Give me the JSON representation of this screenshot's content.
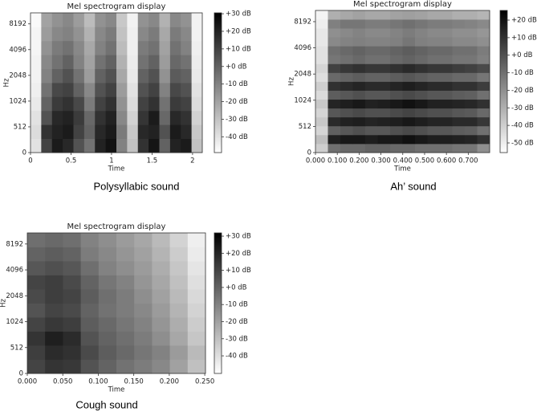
{
  "chart_data": [
    {
      "type": "heatmap",
      "title": "Mel spectrogram display",
      "caption": "Polysyllabic sound",
      "xlabel": "Time",
      "ylabel": "Hz",
      "yscale": "symlog",
      "colormap": "gray_r",
      "xlim": [
        0,
        2.12
      ],
      "xticks": [
        0,
        0.5,
        1,
        1.5,
        2
      ],
      "ylim": [
        0,
        11025
      ],
      "yticks": [
        0,
        512,
        1024,
        2048,
        4096,
        8192
      ],
      "zlim": [
        -49,
        30.5
      ],
      "zticks": [
        {
          "value": 30,
          "label": "+30 dB"
        },
        {
          "value": 20,
          "label": "+20 dB"
        },
        {
          "value": 10,
          "label": "+10 dB"
        },
        {
          "value": 0,
          "label": "+0 dB"
        },
        {
          "value": -10,
          "label": "-10 dB"
        },
        {
          "value": -20,
          "label": "-20 dB"
        },
        {
          "value": -30,
          "label": "-30 dB"
        },
        {
          "value": -40,
          "label": "-40 dB"
        }
      ],
      "z": [
        [
          -40,
          10,
          22,
          18,
          5,
          -5,
          20,
          25,
          -10,
          -30,
          15,
          24,
          0,
          20,
          22,
          -30
        ],
        [
          -38,
          15,
          20,
          22,
          10,
          0,
          18,
          22,
          -8,
          -32,
          18,
          20,
          5,
          22,
          18,
          -32
        ],
        [
          -40,
          5,
          18,
          20,
          12,
          -2,
          15,
          20,
          -12,
          -35,
          14,
          22,
          -2,
          18,
          15,
          -35
        ],
        [
          -42,
          0,
          12,
          15,
          8,
          -8,
          10,
          15,
          -15,
          -38,
          10,
          15,
          -5,
          12,
          10,
          -38
        ],
        [
          -44,
          -5,
          8,
          10,
          0,
          -12,
          5,
          10,
          -18,
          -40,
          5,
          10,
          -10,
          8,
          5,
          -40
        ],
        [
          -45,
          -10,
          0,
          5,
          -5,
          -18,
          0,
          5,
          -22,
          -42,
          0,
          5,
          -15,
          2,
          0,
          -42
        ],
        [
          -45,
          -12,
          -5,
          0,
          -10,
          -20,
          -5,
          0,
          -25,
          -43,
          -5,
          0,
          -18,
          -2,
          -5,
          -43
        ],
        [
          -46,
          -15,
          -8,
          -5,
          -12,
          -22,
          -10,
          -5,
          -28,
          -44,
          -8,
          -5,
          -20,
          -5,
          -10,
          -44
        ],
        [
          -46,
          -18,
          -12,
          -10,
          -15,
          -25,
          -12,
          -8,
          -30,
          -44,
          -12,
          -8,
          -22,
          -8,
          -12,
          -45
        ],
        [
          -47,
          -20,
          -15,
          -12,
          -18,
          -28,
          -15,
          -12,
          -32,
          -45,
          -15,
          -12,
          -25,
          -12,
          -15,
          -45
        ]
      ]
    },
    {
      "type": "heatmap",
      "title": "Mel spectrogram display",
      "caption": "Ah’ sound",
      "xlabel": "Time",
      "ylabel": "Hz",
      "yscale": "symlog",
      "colormap": "gray_r",
      "xlim": [
        0,
        0.798
      ],
      "xticks": [
        {
          "value": 0,
          "label": "0.000"
        },
        {
          "value": 0.1,
          "label": "0.100"
        },
        {
          "value": 0.2,
          "label": "0.200"
        },
        {
          "value": 0.3,
          "label": "0.300"
        },
        {
          "value": 0.4,
          "label": "0.400"
        },
        {
          "value": 0.5,
          "label": "0.500"
        },
        {
          "value": 0.6,
          "label": "0.600"
        },
        {
          "value": 0.7,
          "label": "0.700"
        }
      ],
      "ylim": [
        0,
        11025
      ],
      "yticks": [
        0,
        512,
        1024,
        2048,
        4096,
        8192
      ],
      "zlim": [
        -55.5,
        25.5
      ],
      "zticks": [
        {
          "value": 20,
          "label": "+20 dB"
        },
        {
          "value": 10,
          "label": "+10 dB"
        },
        {
          "value": 0,
          "label": "+0 dB"
        },
        {
          "value": -10,
          "label": "-10 dB"
        },
        {
          "value": -20,
          "label": "-20 dB"
        },
        {
          "value": -30,
          "label": "-30 dB"
        },
        {
          "value": -40,
          "label": "-40 dB"
        },
        {
          "value": -50,
          "label": "-50 dB"
        }
      ],
      "z": [
        [
          -40,
          -10,
          -8,
          -8,
          -6,
          -6,
          -8,
          -8,
          -10,
          -10,
          -10,
          -12,
          -12,
          -20
        ],
        [
          -35,
          15,
          18,
          18,
          16,
          18,
          18,
          20,
          18,
          16,
          16,
          15,
          14,
          10
        ],
        [
          -42,
          -5,
          -2,
          0,
          -2,
          -2,
          0,
          2,
          0,
          -2,
          -2,
          -4,
          -5,
          -10
        ],
        [
          -38,
          12,
          15,
          16,
          14,
          15,
          16,
          18,
          16,
          14,
          14,
          12,
          12,
          8
        ],
        [
          -42,
          -2,
          0,
          2,
          0,
          0,
          2,
          4,
          2,
          0,
          0,
          -2,
          -3,
          -8
        ],
        [
          -38,
          14,
          16,
          18,
          15,
          16,
          18,
          20,
          18,
          15,
          15,
          14,
          13,
          10
        ],
        [
          -44,
          -4,
          -2,
          0,
          -2,
          -2,
          0,
          2,
          0,
          -2,
          -2,
          -4,
          -5,
          -10
        ],
        [
          -40,
          10,
          12,
          14,
          12,
          12,
          14,
          16,
          14,
          12,
          12,
          10,
          10,
          6
        ],
        [
          -45,
          -8,
          -6,
          -4,
          -6,
          -6,
          -4,
          -2,
          -4,
          -6,
          -6,
          -8,
          -8,
          -12
        ],
        [
          -42,
          5,
          8,
          10,
          8,
          8,
          10,
          12,
          10,
          8,
          8,
          6,
          5,
          2
        ],
        [
          -46,
          -12,
          -10,
          -8,
          -10,
          -10,
          -8,
          -6,
          -8,
          -10,
          -10,
          -12,
          -12,
          -15
        ],
        [
          -46,
          -10,
          -8,
          -6,
          -8,
          -8,
          -6,
          -4,
          -6,
          -8,
          -8,
          -10,
          -10,
          -14
        ],
        [
          -48,
          -18,
          -16,
          -15,
          -16,
          -16,
          -15,
          -12,
          -15,
          -16,
          -16,
          -18,
          -18,
          -20
        ],
        [
          -48,
          -20,
          -18,
          -16,
          -18,
          -18,
          -16,
          -14,
          -16,
          -18,
          -18,
          -20,
          -20,
          -22
        ],
        [
          -50,
          -15,
          -12,
          -12,
          -14,
          -14,
          -12,
          -10,
          -12,
          -14,
          -14,
          -15,
          -16,
          -18
        ],
        [
          -52,
          -30,
          -28,
          -26,
          -28,
          -28,
          -26,
          -25,
          -26,
          -28,
          -28,
          -30,
          -30,
          -32
        ]
      ]
    },
    {
      "type": "heatmap",
      "title": "Mel spectrogram display",
      "caption": "Cough sound",
      "xlabel": "Time",
      "ylabel": "Hz",
      "yscale": "symlog",
      "colormap": "gray_r",
      "xlim": [
        0,
        0.251
      ],
      "xticks": [
        {
          "value": 0,
          "label": "0.000"
        },
        {
          "value": 0.05,
          "label": "0.050"
        },
        {
          "value": 0.1,
          "label": "0.100"
        },
        {
          "value": 0.15,
          "label": "0.150"
        },
        {
          "value": 0.2,
          "label": "0.200"
        },
        {
          "value": 0.25,
          "label": "0.250"
        }
      ],
      "ylim": [
        0,
        11025
      ],
      "yticks": [
        0,
        512,
        1024,
        2048,
        4096,
        8192
      ],
      "zlim": [
        -50.3,
        31.9
      ],
      "zticks": [
        {
          "value": 30,
          "label": "+30 dB"
        },
        {
          "value": 20,
          "label": "+20 dB"
        },
        {
          "value": 10,
          "label": "+10 dB"
        },
        {
          "value": 0,
          "label": "+0 dB"
        },
        {
          "value": -10,
          "label": "-10 dB"
        },
        {
          "value": -20,
          "label": "-20 dB"
        },
        {
          "value": -30,
          "label": "-30 dB"
        },
        {
          "value": -40,
          "label": "-40 dB"
        }
      ],
      "z": [
        [
          10,
          15,
          14,
          5,
          0,
          -5,
          -8,
          -12,
          -20,
          -30
        ],
        [
          12,
          18,
          16,
          8,
          2,
          -2,
          -6,
          -10,
          -18,
          -28
        ],
        [
          15,
          22,
          18,
          5,
          0,
          -4,
          -8,
          -14,
          -22,
          -32
        ],
        [
          10,
          14,
          12,
          2,
          -2,
          -6,
          -10,
          -16,
          -24,
          -34
        ],
        [
          5,
          10,
          8,
          0,
          -5,
          -8,
          -12,
          -18,
          -26,
          -36
        ],
        [
          8,
          12,
          10,
          2,
          -4,
          -8,
          -14,
          -20,
          -28,
          -38
        ],
        [
          10,
          12,
          8,
          0,
          -6,
          -10,
          -16,
          -22,
          -30,
          -40
        ],
        [
          4,
          6,
          4,
          -4,
          -10,
          -14,
          -18,
          -24,
          -32,
          -42
        ],
        [
          0,
          2,
          0,
          -8,
          -12,
          -16,
          -20,
          -26,
          -34,
          -44
        ],
        [
          -4,
          -2,
          -4,
          -10,
          -14,
          -18,
          -22,
          -28,
          -36,
          -45
        ]
      ]
    }
  ]
}
